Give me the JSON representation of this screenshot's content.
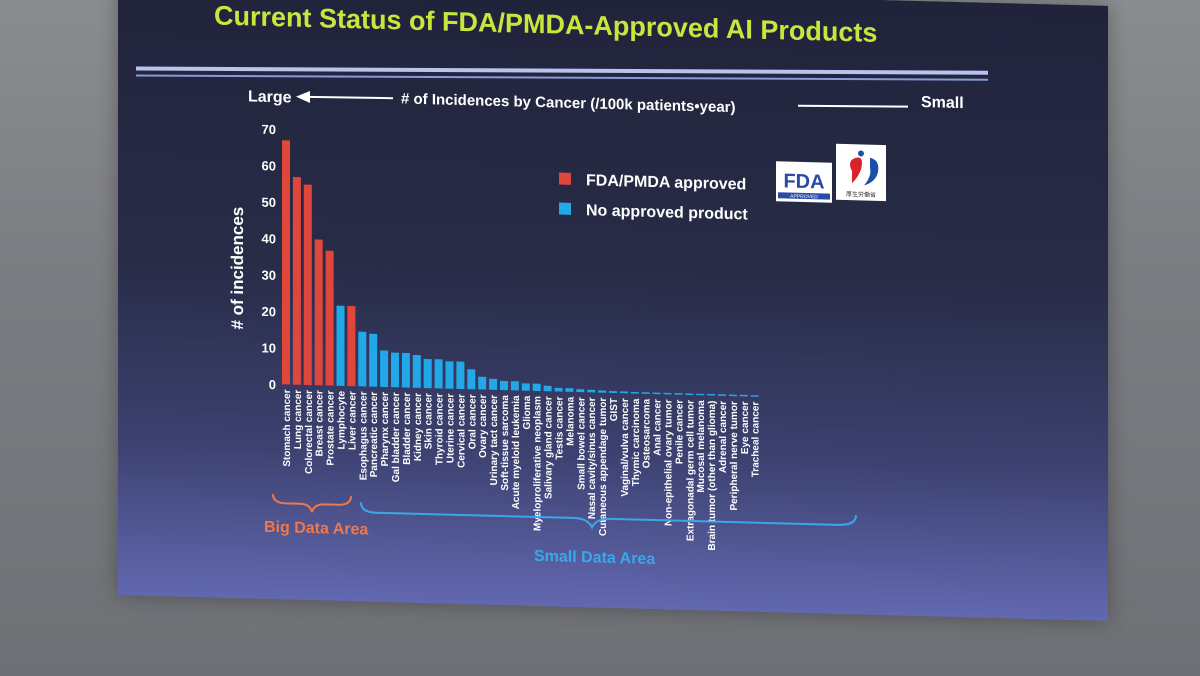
{
  "title": "Current Status of FDA/PMDA-Approved AI Products",
  "header": {
    "large_label": "Large",
    "small_label": "Small",
    "axis_caption": "# of Incidences by Cancer (/100k patients•year)"
  },
  "legend": {
    "approved": "FDA/PMDA approved",
    "not_approved": "No approved product",
    "fda_logo_text": "FDA",
    "fda_logo_sub": "APPROVED",
    "mhlw_logo_sub": "厚生労働省"
  },
  "brace_labels": {
    "big": "Big Data Area",
    "small": "Small Data Area"
  },
  "colors": {
    "approved": "#e0463c",
    "not_approved": "#22a8e8",
    "title": "#c8e63c",
    "text": "#ffffff",
    "big_brace": "#f0784a",
    "small_brace": "#3aa8e8"
  },
  "chart_data": {
    "type": "bar",
    "ylabel": "# of incidences",
    "ylim": [
      0,
      70
    ],
    "yticks": [
      0,
      10,
      20,
      30,
      40,
      50,
      60,
      70
    ],
    "grid": false,
    "legend_position": "top-right",
    "categories": [
      "Stomach cancer",
      "Lung cancer",
      "Colorectal cancer",
      "Breast cancer",
      "Prostate cancer",
      "Lymphocyte",
      "Liver cancer",
      "Esophagus cancer",
      "Pancreatic cancer",
      "Pharynx cancer",
      "Gal bladder cancer",
      "Bladder cancer",
      "Kidney cancer",
      "Skin cancer",
      "Thyroid cancer",
      "Uterine cancer",
      "Cervical cancer",
      "Oral cancer",
      "Ovary cancer",
      "Urinary tact cancer",
      "Soft-tissue sarcoma",
      "Acute myeloid leukemia",
      "Glioma",
      "Myeloproliferative neoplasm",
      "Salivary gland cancer",
      "Testis cancer",
      "Melanoma",
      "Small bowel cancer",
      "Nasal cavity/sinus cancer",
      "Cutaneous appendage tumor",
      "GIST",
      "Vaginal/vulva cancer",
      "Thymic carcinoma",
      "Osteosarcoma",
      "Anal cancer",
      "Non-epithelial ovary tumor",
      "Penile cancer",
      "Extragonadal germ cell tumor",
      "Mucosal melanoma",
      "Brain tumor (other than glioma)",
      "Adrenal cancer",
      "Peripheral nerve tumor",
      "Eye cancer",
      "Tracheal cancer"
    ],
    "series": [
      {
        "name": "FDA/PMDA approved",
        "values": [
          67,
          57,
          55,
          40,
          37,
          0,
          22,
          0,
          0,
          0,
          0,
          0,
          0,
          0,
          0,
          0,
          0,
          0,
          0,
          0,
          0,
          0,
          0,
          0,
          0,
          0,
          0,
          0,
          0,
          0,
          0,
          0,
          0,
          0,
          0,
          0,
          0,
          0,
          0,
          0,
          0,
          0,
          0,
          0
        ]
      },
      {
        "name": "No approved product",
        "values": [
          0,
          0,
          0,
          0,
          0,
          22,
          0,
          15,
          14.5,
          10,
          9.5,
          9.5,
          9,
          8,
          8,
          7.5,
          7.5,
          5.5,
          3.5,
          3,
          2.5,
          2.5,
          2,
          2,
          1.5,
          1,
          1,
          0.8,
          0.7,
          0.6,
          0.5,
          0.5,
          0.4,
          0.4,
          0.3,
          0.3,
          0.2,
          0.2,
          0.2,
          0.2,
          0.1,
          0.1,
          0.1,
          0.1
        ]
      }
    ]
  }
}
